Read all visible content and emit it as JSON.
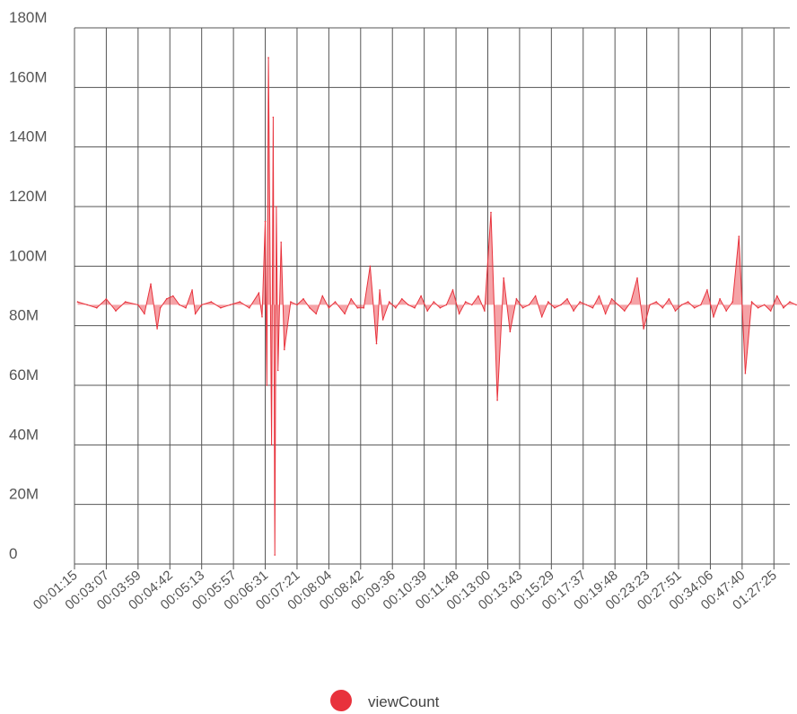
{
  "chart_data": {
    "type": "line",
    "colors": {
      "series": "#e8323c",
      "grid": "#555555",
      "text": "#555555"
    },
    "ylim": [
      0,
      180000000
    ],
    "y_ticks": [
      {
        "value": 0,
        "label": "0"
      },
      {
        "value": 20000000,
        "label": "20M"
      },
      {
        "value": 40000000,
        "label": "40M"
      },
      {
        "value": 60000000,
        "label": "60M"
      },
      {
        "value": 80000000,
        "label": "80M"
      },
      {
        "value": 100000000,
        "label": "100M"
      },
      {
        "value": 120000000,
        "label": "120M"
      },
      {
        "value": 140000000,
        "label": "140M"
      },
      {
        "value": 160000000,
        "label": "160M"
      },
      {
        "value": 180000000,
        "label": "180M"
      }
    ],
    "x_ticks": [
      "00:01:15",
      "00:03:07",
      "00:03:59",
      "00:04:42",
      "00:05:13",
      "00:05:57",
      "00:06:31",
      "00:07:21",
      "00:08:04",
      "00:08:42",
      "00:09:36",
      "00:10:39",
      "00:11:48",
      "00:13:00",
      "00:13:43",
      "00:15:29",
      "00:17:37",
      "00:19:48",
      "00:23:23",
      "00:27:51",
      "00:34:06",
      "00:47:40",
      "01:27:25"
    ],
    "legend": {
      "position": "bottom",
      "entries": [
        "viewCount"
      ]
    },
    "grid": true,
    "series": [
      {
        "name": "viewCount",
        "x": [
          0.1,
          0.4,
          0.7,
          1.0,
          1.3,
          1.6,
          2.0,
          2.2,
          2.4,
          2.6,
          2.7,
          2.9,
          3.1,
          3.3,
          3.5,
          3.7,
          3.8,
          4.0,
          4.3,
          4.6,
          4.9,
          5.2,
          5.5,
          5.8,
          5.9,
          6.0,
          6.05,
          6.1,
          6.2,
          6.25,
          6.3,
          6.35,
          6.4,
          6.5,
          6.6,
          6.8,
          7.0,
          7.2,
          7.4,
          7.6,
          7.8,
          8.0,
          8.2,
          8.5,
          8.7,
          8.9,
          9.1,
          9.3,
          9.5,
          9.6,
          9.7,
          9.9,
          10.1,
          10.3,
          10.5,
          10.7,
          10.9,
          11.1,
          11.3,
          11.5,
          11.7,
          11.9,
          12.1,
          12.3,
          12.5,
          12.7,
          12.9,
          13.1,
          13.3,
          13.5,
          13.7,
          13.9,
          14.1,
          14.3,
          14.5,
          14.7,
          14.9,
          15.1,
          15.3,
          15.5,
          15.7,
          15.9,
          16.1,
          16.3,
          16.5,
          16.7,
          16.9,
          17.1,
          17.3,
          17.5,
          17.7,
          17.9,
          18.1,
          18.3,
          18.5,
          18.7,
          18.9,
          19.1,
          19.3,
          19.5,
          19.7,
          19.9,
          20.1,
          20.3,
          20.5,
          20.7,
          20.9,
          21.1,
          21.3,
          21.5,
          21.7,
          21.9,
          22.1,
          22.3,
          22.5,
          22.7
        ],
        "y": [
          88,
          87,
          86,
          89,
          85,
          88,
          87,
          84,
          94,
          79,
          86,
          89,
          90,
          87,
          86,
          92,
          84,
          87,
          88,
          86,
          87,
          88,
          86,
          91,
          83,
          115,
          60,
          170,
          40,
          150,
          3,
          120,
          65,
          108,
          72,
          88,
          87,
          89,
          86,
          84,
          90,
          86,
          88,
          84,
          89,
          86,
          86,
          100,
          74,
          92,
          82,
          88,
          86,
          89,
          87,
          86,
          90,
          85,
          88,
          86,
          87,
          92,
          84,
          88,
          87,
          90,
          85,
          118,
          55,
          96,
          78,
          89,
          86,
          87,
          90,
          83,
          88,
          86,
          87,
          89,
          85,
          88,
          87,
          86,
          90,
          84,
          89,
          87,
          85,
          88,
          96,
          79,
          87,
          88,
          86,
          89,
          85,
          87,
          88,
          86,
          87,
          92,
          83,
          89,
          85,
          88,
          110,
          64,
          88,
          86,
          87,
          85,
          90,
          86,
          88,
          87
        ]
      }
    ]
  }
}
